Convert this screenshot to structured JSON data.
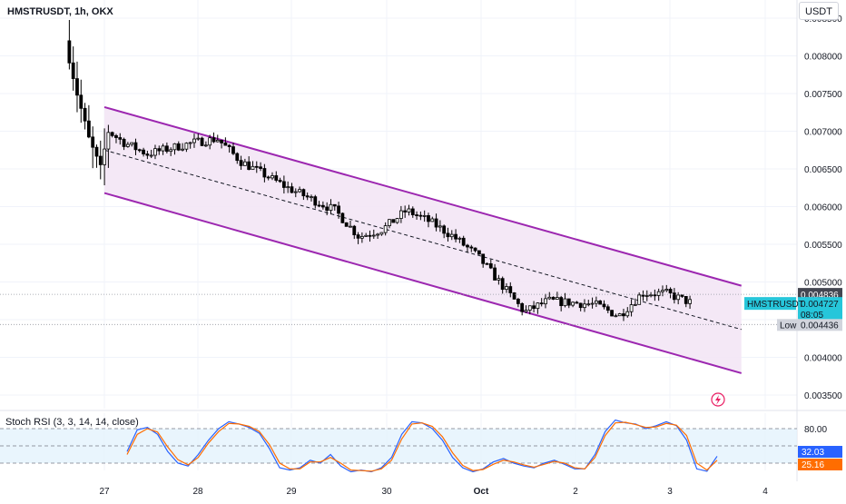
{
  "header": {
    "symbol_title": "HMSTRUSDT, 1h, OKX",
    "currency": "USDT"
  },
  "indicator": {
    "title": "Stoch RSI (3, 3, 14, 14, close)"
  },
  "price_axis": {
    "ticks": [
      "0.008500",
      "0.008000",
      "0.007500",
      "0.007000",
      "0.006500",
      "0.006000",
      "0.005500",
      "0.005000",
      "0.004500",
      "0.004000",
      "0.003500"
    ]
  },
  "labels": {
    "last_price": "0.004836",
    "symbol_tag": "HMSTRUSDT",
    "current_price": "0.004727",
    "countdown": "08:05",
    "low_tag": "Low",
    "low_price": "0.004436"
  },
  "stoch_axis": {
    "ticks": [
      "80.00"
    ],
    "k_value": "32.03",
    "d_value": "25.16"
  },
  "time_axis": {
    "labels": [
      "27",
      "28",
      "29",
      "30",
      "Oct",
      "2",
      "3",
      "4"
    ]
  },
  "colors": {
    "up_candle": "#ffffff",
    "down_candle": "#000000",
    "channel": "#9c27b0",
    "channel_fill": "#f3e5f5",
    "k_line": "#2962ff",
    "d_line": "#ff6d00",
    "stoch_band": "#e3f2fd",
    "current_price_bg": "#26c6da",
    "last_price_bg": "#434651"
  },
  "chart_data": [
    {
      "type": "candlestick",
      "title": "HMSTRUSDT, 1h, OKX",
      "ylim": [
        0.0033,
        0.0086
      ],
      "ylabel": "USDT",
      "grid": true,
      "points": [
        {
          "x": "26 15:00",
          "y": 0.0082
        },
        {
          "x": "26 18:00",
          "y": 0.0075
        },
        {
          "x": "26 21:00",
          "y": 0.0069
        },
        {
          "x": "27 00:00",
          "y": 0.0065
        },
        {
          "x": "27 02:00",
          "y": 0.007
        },
        {
          "x": "27 06:00",
          "y": 0.00685
        },
        {
          "x": "27 12:00",
          "y": 0.0067
        },
        {
          "x": "28 00:00",
          "y": 0.00685
        },
        {
          "x": "28 06:00",
          "y": 0.0069
        },
        {
          "x": "28 12:00",
          "y": 0.0066
        },
        {
          "x": "29 00:00",
          "y": 0.00625
        },
        {
          "x": "29 12:00",
          "y": 0.00595
        },
        {
          "x": "29 18:00",
          "y": 0.0056
        },
        {
          "x": "30 00:00",
          "y": 0.0057
        },
        {
          "x": "30 06:00",
          "y": 0.00595
        },
        {
          "x": "30 12:00",
          "y": 0.0058
        },
        {
          "x": "30 18:00",
          "y": 0.0056
        },
        {
          "x": "Oct 00:00",
          "y": 0.00535
        },
        {
          "x": "Oct 12:00",
          "y": 0.0046
        },
        {
          "x": "Oct 18:00",
          "y": 0.00475
        },
        {
          "x": "2 06:00",
          "y": 0.0047
        },
        {
          "x": "2 12:00",
          "y": 0.00455
        },
        {
          "x": "2 18:00",
          "y": 0.00485
        },
        {
          "x": "3 00:00",
          "y": 0.00485
        },
        {
          "x": "3 06:00",
          "y": 0.00473
        }
      ],
      "channel": {
        "upper": [
          {
            "x": "27 00:00",
            "y": 0.00732
          },
          {
            "x": "3 18:00",
            "y": 0.00495
          }
        ],
        "middle": [
          {
            "x": "27 00:00",
            "y": 0.00675
          },
          {
            "x": "3 18:00",
            "y": 0.00437
          }
        ],
        "lower": [
          {
            "x": "27 00:00",
            "y": 0.00618
          },
          {
            "x": "3 18:00",
            "y": 0.00379
          }
        ]
      },
      "last_price": 0.004836,
      "current_price": 0.004727,
      "low": 0.004436
    },
    {
      "type": "line",
      "title": "Stoch RSI (3, 3, 14, 14, close)",
      "ylim": [
        0,
        100
      ],
      "bands": [
        20,
        80
      ],
      "series": [
        {
          "name": "K",
          "values": [
            40,
            78,
            82,
            70,
            40,
            20,
            15,
            35,
            60,
            80,
            92,
            88,
            82,
            72,
            45,
            12,
            8,
            12,
            25,
            20,
            35,
            15,
            5,
            8,
            5,
            12,
            30,
            70,
            92,
            90,
            80,
            60,
            30,
            12,
            5,
            10,
            22,
            28,
            20,
            15,
            12,
            20,
            25,
            18,
            10,
            10,
            35,
            75,
            95,
            90,
            88,
            80,
            85,
            92,
            85,
            60,
            10,
            6,
            32
          ]
        },
        {
          "name": "D",
          "values": [
            35,
            70,
            80,
            74,
            48,
            26,
            17,
            30,
            55,
            75,
            89,
            88,
            84,
            75,
            52,
            20,
            10,
            10,
            22,
            22,
            30,
            20,
            8,
            7,
            6,
            10,
            25,
            62,
            88,
            90,
            84,
            66,
            38,
            16,
            7,
            9,
            18,
            25,
            22,
            17,
            13,
            18,
            23,
            20,
            12,
            10,
            30,
            68,
            90,
            91,
            87,
            82,
            83,
            89,
            86,
            68,
            20,
            8,
            25
          ]
        }
      ]
    }
  ]
}
